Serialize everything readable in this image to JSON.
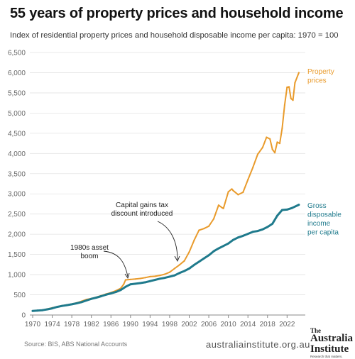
{
  "header": {
    "title": "55 years of property prices and household income",
    "subtitle": "Index of residential property prices and household disposable income per capita: 1970 = 100"
  },
  "chart_data": {
    "type": "line",
    "y_ticks": [
      "0",
      "500",
      "1,000",
      "1,500",
      "2,000",
      "2,500",
      "3,000",
      "3,500",
      "4,000",
      "4,500",
      "5,000",
      "5,500",
      "6,000",
      "6,500"
    ],
    "x_ticks": [
      "1970",
      "1974",
      "1978",
      "1982",
      "1986",
      "1990",
      "1994",
      "1998",
      "2002",
      "2006",
      "2010",
      "2014",
      "2018",
      "2022"
    ],
    "ylim": [
      0,
      6500
    ],
    "xlim": [
      1970,
      2025
    ],
    "grid": "horizontal",
    "series": [
      {
        "name": "Property prices",
        "label_lines": [
          "Property",
          "prices"
        ],
        "color": "#e99b2c",
        "points": [
          [
            1970,
            100
          ],
          [
            1971,
            110
          ],
          [
            1972,
            122
          ],
          [
            1973,
            150
          ],
          [
            1974,
            180
          ],
          [
            1975,
            205
          ],
          [
            1976,
            230
          ],
          [
            1977,
            250
          ],
          [
            1978,
            272
          ],
          [
            1979,
            300
          ],
          [
            1980,
            340
          ],
          [
            1981,
            385
          ],
          [
            1982,
            410
          ],
          [
            1983,
            440
          ],
          [
            1984,
            480
          ],
          [
            1985,
            520
          ],
          [
            1986,
            555
          ],
          [
            1987,
            600
          ],
          [
            1988,
            660
          ],
          [
            1988.6,
            760
          ],
          [
            1989,
            870
          ],
          [
            1990,
            880
          ],
          [
            1991,
            890
          ],
          [
            1992,
            905
          ],
          [
            1993,
            925
          ],
          [
            1994,
            950
          ],
          [
            1995,
            960
          ],
          [
            1996,
            980
          ],
          [
            1997,
            1010
          ],
          [
            1998,
            1060
          ],
          [
            1999,
            1150
          ],
          [
            2000,
            1240
          ],
          [
            2001,
            1340
          ],
          [
            2002,
            1560
          ],
          [
            2003,
            1850
          ],
          [
            2004,
            2100
          ],
          [
            2005,
            2140
          ],
          [
            2006,
            2200
          ],
          [
            2007,
            2380
          ],
          [
            2008,
            2720
          ],
          [
            2008.8,
            2650
          ],
          [
            2009,
            2640
          ],
          [
            2010,
            3050
          ],
          [
            2010.7,
            3120
          ],
          [
            2011,
            3080
          ],
          [
            2012,
            2980
          ],
          [
            2013,
            3040
          ],
          [
            2014,
            3350
          ],
          [
            2015,
            3650
          ],
          [
            2016,
            3980
          ],
          [
            2017,
            4150
          ],
          [
            2017.8,
            4400
          ],
          [
            2018.5,
            4360
          ],
          [
            2019,
            4100
          ],
          [
            2019.5,
            4020
          ],
          [
            2020,
            4280
          ],
          [
            2020.5,
            4250
          ],
          [
            2021,
            4620
          ],
          [
            2021.5,
            5200
          ],
          [
            2022,
            5640
          ],
          [
            2022.4,
            5650
          ],
          [
            2022.8,
            5360
          ],
          [
            2023.2,
            5320
          ],
          [
            2023.6,
            5750
          ],
          [
            2024.4,
            6000
          ]
        ]
      },
      {
        "name": "Gross disposable income per capita",
        "label_lines": [
          "Gross",
          "disposable",
          "income",
          "per capita"
        ],
        "color": "#1f7a8c",
        "points": [
          [
            1970,
            100
          ],
          [
            1971,
            110
          ],
          [
            1972,
            120
          ],
          [
            1973,
            140
          ],
          [
            1974,
            165
          ],
          [
            1975,
            200
          ],
          [
            1976,
            225
          ],
          [
            1977,
            245
          ],
          [
            1978,
            265
          ],
          [
            1979,
            290
          ],
          [
            1980,
            320
          ],
          [
            1981,
            360
          ],
          [
            1982,
            400
          ],
          [
            1983,
            430
          ],
          [
            1984,
            465
          ],
          [
            1985,
            505
          ],
          [
            1986,
            535
          ],
          [
            1987,
            570
          ],
          [
            1988,
            620
          ],
          [
            1989,
            700
          ],
          [
            1990,
            760
          ],
          [
            1991,
            775
          ],
          [
            1992,
            790
          ],
          [
            1993,
            810
          ],
          [
            1994,
            840
          ],
          [
            1995,
            870
          ],
          [
            1996,
            900
          ],
          [
            1997,
            920
          ],
          [
            1998,
            950
          ],
          [
            1999,
            980
          ],
          [
            2000,
            1040
          ],
          [
            2001,
            1090
          ],
          [
            2002,
            1150
          ],
          [
            2003,
            1240
          ],
          [
            2004,
            1320
          ],
          [
            2005,
            1400
          ],
          [
            2006,
            1480
          ],
          [
            2007,
            1580
          ],
          [
            2008,
            1650
          ],
          [
            2009,
            1710
          ],
          [
            2010,
            1770
          ],
          [
            2011,
            1860
          ],
          [
            2012,
            1920
          ],
          [
            2013,
            1960
          ],
          [
            2014,
            2010
          ],
          [
            2015,
            2060
          ],
          [
            2016,
            2080
          ],
          [
            2017,
            2120
          ],
          [
            2018,
            2180
          ],
          [
            2019,
            2260
          ],
          [
            2020,
            2460
          ],
          [
            2021,
            2600
          ],
          [
            2022,
            2610
          ],
          [
            2023,
            2650
          ],
          [
            2024.4,
            2730
          ]
        ]
      }
    ],
    "annotations": [
      {
        "lines": [
          "1980s asset",
          "boom"
        ],
        "year": 1988.7,
        "value": 820
      },
      {
        "lines": [
          "Capital gains tax",
          "discount introduced"
        ],
        "year": 1999.6,
        "value": 1230
      }
    ]
  },
  "footer": {
    "source": "Source: BIS, ABS National Accounts",
    "website": "australiainstitute.org.au",
    "logo": {
      "line1": "The",
      "line2": "Australia Institute",
      "line3": "Research that matters."
    }
  }
}
